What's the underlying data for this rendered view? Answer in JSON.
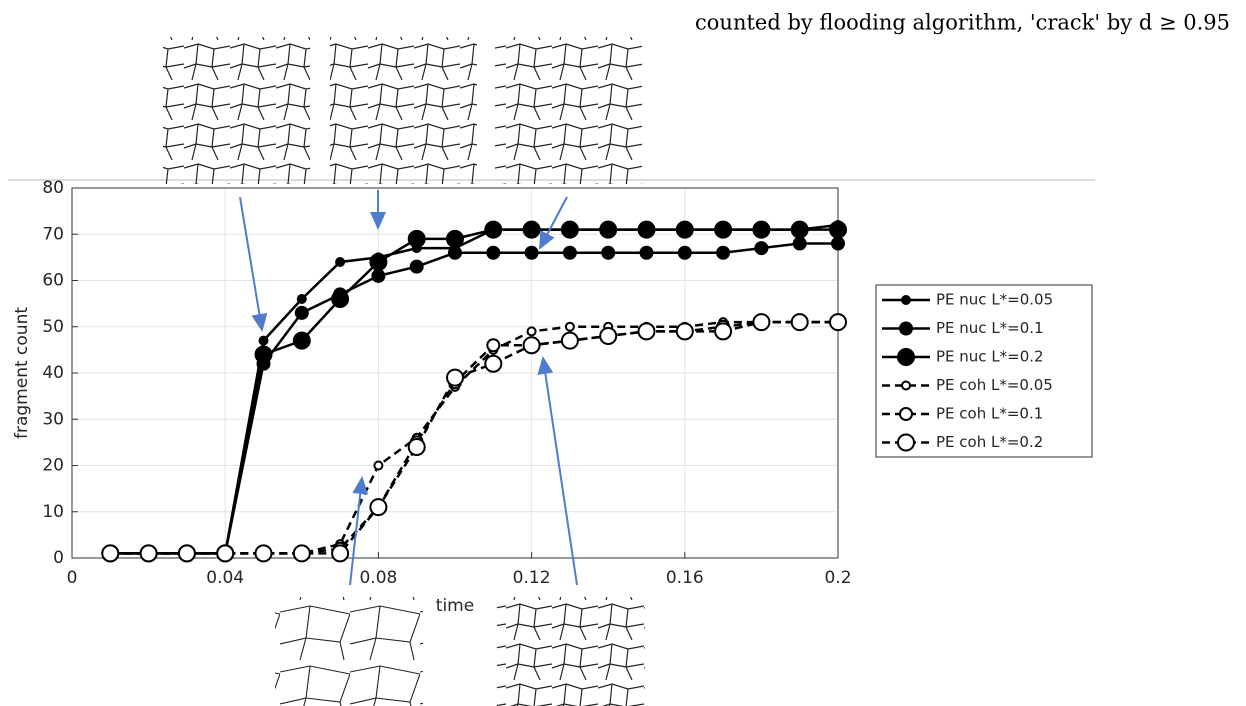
{
  "chart_data": {
    "type": "line",
    "annotation": "counted by flooding algorithm, 'crack' by d ≥ 0.95",
    "x_label": "time",
    "y_label": "fragment count",
    "x": [
      0.01,
      0.02,
      0.03,
      0.04,
      0.05,
      0.06,
      0.07,
      0.08,
      0.09,
      0.1,
      0.11,
      0.12,
      0.13,
      0.14,
      0.15,
      0.16,
      0.17,
      0.18,
      0.19,
      0.2
    ],
    "series": [
      {
        "name": "PE nuc L*=0.05",
        "color": "#000000",
        "line_style": "solid",
        "marker_fill": true,
        "values": [
          1,
          1,
          1,
          1,
          47,
          56,
          64,
          65,
          67,
          67,
          71,
          71,
          71,
          71,
          71,
          71,
          71,
          71,
          71,
          72
        ]
      },
      {
        "name": "PE nuc L*=0.1",
        "color": "#000000",
        "line_style": "solid",
        "marker_fill": true,
        "values": [
          1,
          1,
          1,
          1,
          42,
          53,
          57,
          61,
          63,
          66,
          66,
          66,
          66,
          66,
          66,
          66,
          66,
          67,
          68,
          68
        ]
      },
      {
        "name": "PE nuc L*=0.2",
        "color": "#000000",
        "line_style": "solid",
        "marker_fill": true,
        "values": [
          1,
          1,
          1,
          1,
          44,
          47,
          56,
          64,
          69,
          69,
          71,
          71,
          71,
          71,
          71,
          71,
          71,
          71,
          71,
          71
        ]
      },
      {
        "name": "PE coh L*=0.05",
        "color": "#000000",
        "line_style": "dashed",
        "marker_fill": false,
        "values": [
          1,
          1,
          1,
          1,
          1,
          1,
          3,
          20,
          26,
          37,
          45,
          49,
          50,
          50,
          50,
          50,
          51,
          51,
          51,
          51
        ]
      },
      {
        "name": "PE coh L*=0.1",
        "color": "#000000",
        "line_style": "dashed",
        "marker_fill": false,
        "values": [
          1,
          1,
          1,
          1,
          1,
          1,
          2,
          11,
          25,
          38,
          46,
          46,
          47,
          48,
          49,
          49,
          50,
          51,
          51,
          51
        ]
      },
      {
        "name": "PE coh L*=0.2",
        "color": "#000000",
        "line_style": "dashed",
        "marker_fill": false,
        "values": [
          1,
          1,
          1,
          1,
          1,
          1,
          1,
          11,
          24,
          39,
          42,
          46,
          47,
          48,
          49,
          49,
          49,
          51,
          51,
          51
        ]
      }
    ],
    "xlim": [
      0,
      0.2
    ],
    "xticks": [
      0,
      0.04,
      0.08,
      0.12,
      0.16,
      0.2
    ],
    "ylim": [
      0,
      80
    ],
    "yticks": [
      0,
      10,
      20,
      30,
      40,
      50,
      60,
      70,
      80
    ],
    "grid": true
  }
}
